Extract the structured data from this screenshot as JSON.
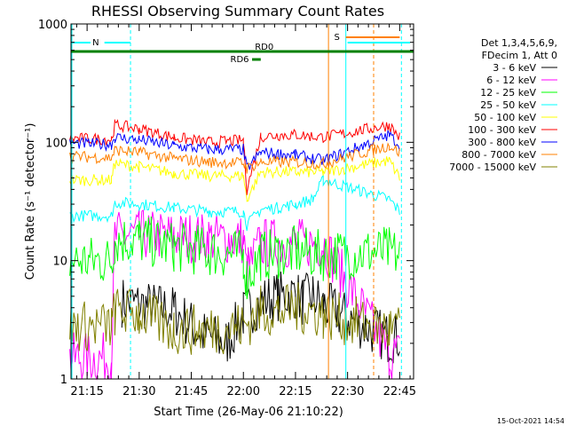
{
  "chart_data": {
    "type": "line",
    "title": "RHESSI Observing Summary Count Rates",
    "xlabel": "Start Time (26-May-06 21:10:22)",
    "ylabel": "Count Rate (s⁻¹ detector⁻¹)",
    "y_scale": "log",
    "ylim": [
      1,
      1000
    ],
    "xlim": [
      "21:10:22",
      "22:49:00"
    ],
    "x_ticks": [
      "21:15",
      "21:30",
      "21:45",
      "22:00",
      "22:15",
      "22:30",
      "22:45"
    ],
    "y_ticks": [
      "1",
      "10",
      "100",
      "1000"
    ],
    "legend_header": [
      "Det 1,3,4,5,6,9,",
      "FDecim 1, Att 0"
    ],
    "legend_position": "right",
    "footer": "15-Oct-2021 14:54",
    "flags": [
      {
        "label": "N",
        "color": "#00ffff",
        "start": "21:10:22",
        "end": "21:27:30"
      },
      {
        "label": "S",
        "color": "#ff8000",
        "start": "22:29:30",
        "end": "22:45:00"
      },
      {
        "label": "RD0",
        "color": "#008000",
        "start": "21:10:22",
        "end": "22:49:00"
      },
      {
        "label": "RD6",
        "color": "#008000",
        "start": "22:02:30",
        "end": "22:05:00"
      }
    ],
    "series": [
      {
        "name": "3 - 6 keV",
        "color": "#000000",
        "x": [
          "21:10",
          "21:22",
          "21:25",
          "21:40",
          "21:48",
          "21:55",
          "22:00",
          "22:05",
          "22:10",
          "22:15",
          "22:17",
          "22:20",
          "22:23",
          "22:42",
          "22:45"
        ],
        "values": [
          null,
          null,
          4.5,
          3.8,
          2.4,
          2.0,
          3.5,
          4.5,
          5.0,
          5.2,
          4.6,
          5.0,
          4.2,
          2.2,
          2.3
        ]
      },
      {
        "name": "6 - 12 keV",
        "color": "#ff00ff",
        "x": [
          "21:10",
          "21:22",
          "21:23",
          "21:30",
          "21:40",
          "21:50",
          "22:00",
          "22:01",
          "22:05",
          "22:10",
          "22:15",
          "22:23",
          "22:42",
          "22:45"
        ],
        "values": [
          1.5,
          1.5,
          16,
          16.5,
          16,
          15.5,
          15,
          8,
          14,
          14,
          14,
          14,
          1.6,
          1.6
        ]
      },
      {
        "name": "12 - 25 keV",
        "color": "#00ff00",
        "x": [
          "21:10",
          "21:22",
          "21:23",
          "21:30",
          "21:40",
          "21:50",
          "22:00",
          "22:01",
          "22:05",
          "22:10",
          "22:15",
          "22:23",
          "22:42",
          "22:45"
        ],
        "values": [
          10,
          10,
          15,
          15,
          13,
          12,
          11,
          7,
          11,
          11.5,
          12,
          11,
          12,
          11
        ]
      },
      {
        "name": "25 - 50 keV",
        "color": "#00ffff",
        "x": [
          "21:10",
          "21:22",
          "21:23",
          "21:30",
          "21:40",
          "21:50",
          "22:00",
          "22:01",
          "22:05",
          "22:10",
          "22:15",
          "22:20",
          "22:23",
          "22:42",
          "22:45"
        ],
        "values": [
          24,
          24,
          31,
          30,
          28,
          26,
          26,
          20,
          27,
          28,
          30,
          33,
          48,
          33,
          26
        ]
      },
      {
        "name": "50 - 100 keV",
        "color": "#ffff00",
        "x": [
          "21:10",
          "21:22",
          "21:23",
          "21:30",
          "21:40",
          "21:50",
          "22:00",
          "22:01",
          "22:05",
          "22:10",
          "22:15",
          "22:23",
          "22:42",
          "22:45"
        ],
        "values": [
          48,
          48,
          66,
          62,
          55,
          52,
          52,
          33,
          56,
          56,
          56,
          56,
          70,
          50
        ]
      },
      {
        "name": "100 - 300 keV",
        "color": "#ff0000",
        "x": [
          "21:10",
          "21:22",
          "21:23",
          "21:30",
          "21:40",
          "21:50",
          "22:00",
          "22:01",
          "22:05",
          "22:10",
          "22:15",
          "22:23",
          "22:42",
          "22:45"
        ],
        "values": [
          108,
          106,
          140,
          130,
          110,
          100,
          104,
          40,
          112,
          115,
          116,
          110,
          140,
          110
        ]
      },
      {
        "name": "300 - 800 keV",
        "color": "#0000ff",
        "x": [
          "21:10",
          "21:22",
          "21:23",
          "21:30",
          "21:40",
          "21:50",
          "22:00",
          "22:01",
          "22:05",
          "22:10",
          "22:15",
          "22:23",
          "22:42",
          "22:45"
        ],
        "values": [
          98,
          96,
          110,
          105,
          93,
          87,
          87,
          60,
          82,
          80,
          78,
          70,
          115,
          95
        ]
      },
      {
        "name": "800 - 7000 keV",
        "color": "#ff8000",
        "x": [
          "21:10",
          "21:22",
          "21:23",
          "21:30",
          "21:40",
          "21:50",
          "22:00",
          "22:01",
          "22:05",
          "22:10",
          "22:15",
          "22:23",
          "22:42",
          "22:45"
        ],
        "values": [
          76,
          74,
          86,
          82,
          73,
          68,
          67,
          60,
          68,
          68,
          68,
          66,
          94,
          82
        ]
      },
      {
        "name": "7000 - 15000 keV",
        "color": "#808000",
        "x": [
          "21:10",
          "21:22",
          "21:23",
          "21:30",
          "21:40",
          "21:50",
          "22:00",
          "22:05",
          "22:10",
          "22:15",
          "22:20",
          "22:23",
          "22:42",
          "22:45"
        ],
        "values": [
          2.8,
          2.8,
          3.7,
          3.6,
          2.6,
          2.6,
          2.8,
          3.8,
          3.7,
          4.0,
          3.8,
          3.5,
          2.6,
          2.6
        ]
      }
    ]
  }
}
